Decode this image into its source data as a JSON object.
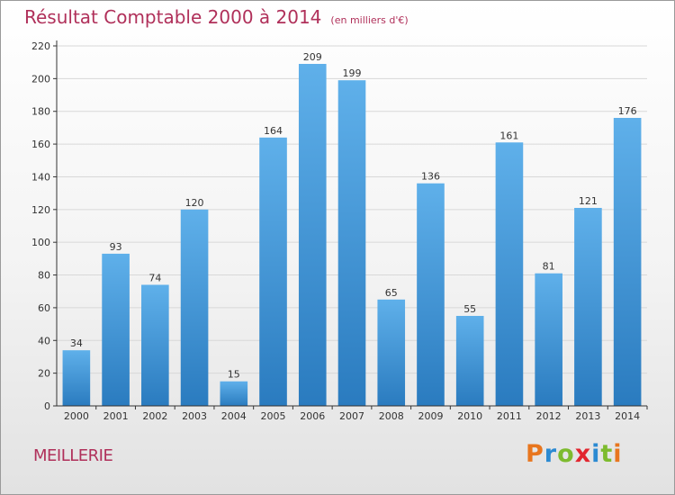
{
  "colors": {
    "title": "#b0305a",
    "bar_light": "#5fb0ea",
    "bar_dark": "#2a7bbf",
    "axis": "#333333",
    "grid": "#d8d8d8"
  },
  "location": "MEILLERIE",
  "brand": {
    "text": "Proxiti",
    "letters": [
      "P",
      "r",
      "o",
      "x",
      "i",
      "t",
      "i"
    ],
    "letter_colors": [
      "#e8761e",
      "#2b8ad2",
      "#7dbb2e",
      "#e2262f",
      "#2b8ad2",
      "#7dbb2e",
      "#e8761e"
    ]
  },
  "chart_data": {
    "type": "bar",
    "title": "Résultat Comptable 2000 à 2014",
    "subtitle": "(en milliers d'€)",
    "categories": [
      "2000",
      "2001",
      "2002",
      "2003",
      "2004",
      "2005",
      "2006",
      "2007",
      "2008",
      "2009",
      "2010",
      "2011",
      "2012",
      "2013",
      "2014"
    ],
    "values": [
      34,
      93,
      74,
      120,
      15,
      164,
      209,
      199,
      65,
      136,
      55,
      161,
      81,
      121,
      176
    ],
    "ylim": [
      0,
      220
    ],
    "yticks": [
      0,
      20,
      40,
      60,
      80,
      100,
      120,
      140,
      160,
      180,
      200,
      220
    ],
    "xlabel": "",
    "ylabel": "",
    "grid": true
  }
}
